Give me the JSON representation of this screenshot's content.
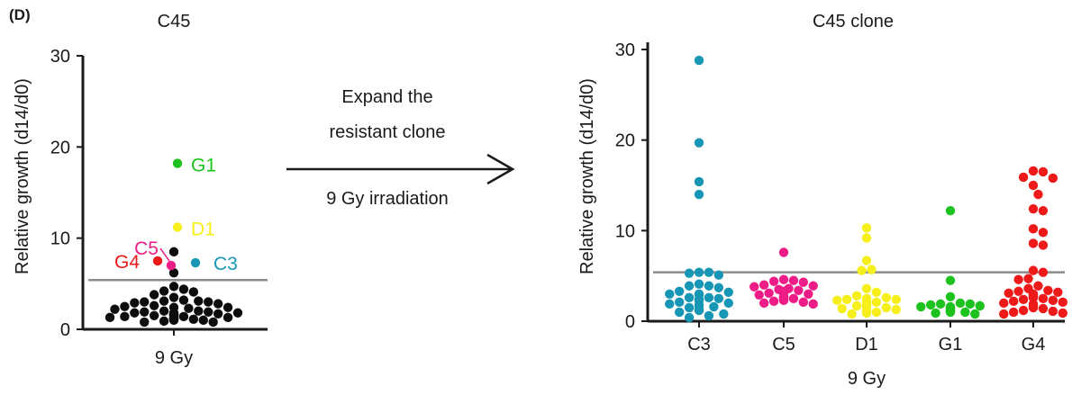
{
  "panel_label": "(D)",
  "arrow": {
    "line1": "Expand the",
    "line2": "resistant clone",
    "line3": "9 Gy irradiation"
  },
  "colors": {
    "C3": "#1797b5",
    "C5": "#ee1c87",
    "D1": "#f6ef1b",
    "G1": "#1ec21e",
    "G4": "#ee1a1a",
    "black": "#0d0d0d",
    "threshold": "#8c8c8c"
  },
  "chart_data": [
    {
      "type": "scatter",
      "title": "C45",
      "ylabel": "Relative growth (d14/d0)",
      "xlabel": "",
      "categories": [
        "9 Gy"
      ],
      "ylim": [
        0,
        30
      ],
      "yticks": [
        0,
        10,
        20,
        30
      ],
      "threshold": 5.4,
      "series": [
        {
          "name": "C45",
          "color": "#0d0d0d",
          "values": [
            8.5,
            6.2,
            4.7,
            4.4,
            4.1,
            4.2,
            3.5,
            3.8,
            3.1,
            3.0,
            3.2,
            2.9,
            3.0,
            3.1,
            2.8,
            2.6,
            2.5,
            2.4,
            2.3,
            2.4,
            2.2,
            1.9,
            1.8,
            1.7,
            1.6,
            1.9,
            2.0,
            1.8,
            1.5,
            1.4,
            1.3,
            1.2,
            1.1,
            1.0,
            0.9,
            0.8,
            0.8,
            1.4,
            1.5,
            1.6,
            1.2,
            1.1,
            1.0,
            1.2,
            1.3,
            1.4,
            1.6,
            1.7,
            1.8,
            2.0
          ]
        }
      ],
      "labeled_points": [
        {
          "name": "G1",
          "value": 18.2,
          "color": "#1ec21e"
        },
        {
          "name": "D1",
          "value": 11.2,
          "color": "#f6ef1b"
        },
        {
          "name": "C5",
          "value": 7.0,
          "color": "#ee1c87"
        },
        {
          "name": "G4",
          "value": 7.5,
          "color": "#ee1a1a"
        },
        {
          "name": "C3",
          "value": 7.3,
          "color": "#1797b5"
        }
      ]
    },
    {
      "type": "scatter",
      "title": "C45 clone",
      "ylabel": "Relative growth (d14/d0)",
      "xlabel": "9 Gy",
      "categories": [
        "C3",
        "C5",
        "D1",
        "G1",
        "G4"
      ],
      "ylim": [
        0,
        30
      ],
      "yticks": [
        0,
        10,
        20,
        30
      ],
      "threshold": 5.4,
      "series": [
        {
          "name": "C3",
          "color": "#1797b5",
          "values": [
            28.8,
            19.7,
            15.4,
            14.0,
            5.4,
            5.3,
            5.4,
            5.1,
            4.1,
            3.9,
            3.7,
            3.9,
            3.3,
            3.0,
            3.2,
            2.9,
            2.6,
            2.5,
            2.4,
            2.3,
            2.1,
            2.0,
            1.9,
            1.8,
            1.6,
            1.4,
            1.2,
            1.0,
            0.8,
            0.6,
            0.4,
            1.3,
            1.5,
            1.7,
            2.6,
            3.0
          ]
        },
        {
          "name": "C5",
          "color": "#ee1c87",
          "values": [
            7.6,
            4.6,
            4.4,
            4.5,
            4.3,
            4.0,
            3.8,
            3.9,
            3.6,
            3.4,
            3.3,
            3.1,
            3.0,
            2.9,
            2.8,
            2.7,
            2.6,
            2.5,
            2.4,
            2.3,
            2.2,
            2.1,
            2.0,
            1.9,
            3.2,
            3.5,
            2.6,
            2.4
          ]
        },
        {
          "name": "D1",
          "color": "#f6ef1b",
          "values": [
            10.3,
            9.2,
            6.7,
            5.7,
            5.6,
            3.6,
            3.2,
            2.8,
            2.5,
            2.4,
            2.3,
            2.2,
            2.1,
            2.0,
            1.9,
            1.8,
            1.7,
            1.6,
            1.5,
            1.4,
            1.3,
            1.2,
            1.1,
            1.0,
            0.9,
            0.8,
            2.6,
            2.4,
            2.2,
            1.9
          ]
        },
        {
          "name": "G1",
          "color": "#1ec21e",
          "values": [
            12.2,
            4.5,
            2.7,
            2.0,
            1.9,
            1.8,
            1.7,
            1.6,
            1.5,
            1.4,
            1.3,
            1.2,
            1.1,
            1.0,
            0.9,
            0.8,
            1.5,
            1.6,
            1.9,
            1.2,
            1.0
          ]
        },
        {
          "name": "G4",
          "color": "#ee1a1a",
          "values": [
            16.6,
            16.5,
            15.9,
            15.8,
            15.0,
            14.0,
            12.4,
            12.2,
            10.2,
            9.8,
            8.6,
            8.4,
            5.6,
            5.4,
            4.7,
            4.6,
            3.9,
            3.6,
            3.4,
            3.3,
            3.1,
            2.9,
            2.8,
            2.7,
            2.5,
            2.4,
            2.3,
            2.1,
            2.0,
            1.9,
            1.8,
            1.6,
            1.5,
            1.4,
            1.2,
            1.1,
            1.0,
            0.9,
            0.8,
            2.2,
            2.6,
            3.0,
            3.2
          ]
        }
      ]
    }
  ]
}
